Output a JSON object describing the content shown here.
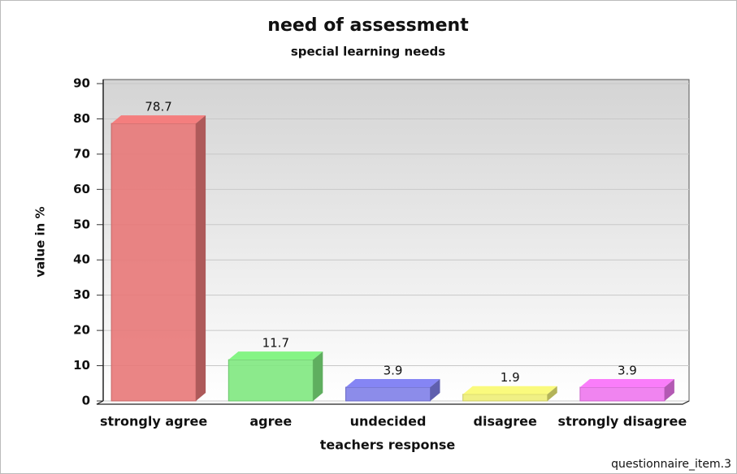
{
  "chart_data": {
    "type": "bar3d",
    "title": "need of assessment",
    "subtitle": "special learning needs",
    "ylabel": "value in %",
    "xlabel": "teachers response",
    "credit": "questionnaire_item.3",
    "categories": [
      "strongly agree",
      "agree",
      "undecided",
      "disagree",
      "strongly disagree"
    ],
    "values": [
      78.7,
      11.7,
      3.9,
      1.9,
      3.9
    ],
    "colors": [
      "#e87878",
      "#7fe87f",
      "#7f7fe8",
      "#eeee77",
      "#ee77ee"
    ],
    "ylim": [
      0,
      90
    ],
    "yticks": [
      0,
      10,
      20,
      30,
      40,
      50,
      60,
      70,
      80,
      90
    ],
    "grid": true
  }
}
